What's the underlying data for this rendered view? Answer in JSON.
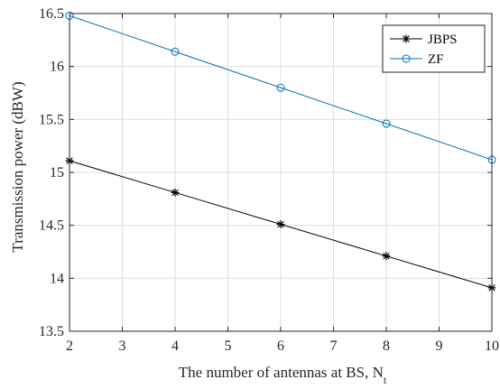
{
  "chart_data": {
    "type": "line",
    "xlabel": "The number of antennas at BS, N",
    "xlabel_subscript": "t",
    "ylabel": "Transmission power (dBW)",
    "xlim": [
      2,
      10
    ],
    "ylim": [
      13.5,
      16.5
    ],
    "xticks": [
      2,
      3,
      4,
      5,
      6,
      7,
      8,
      9,
      10
    ],
    "yticks": [
      13.5,
      14,
      14.5,
      15,
      15.5,
      16,
      16.5
    ],
    "ytick_labels": [
      "13.5",
      "14",
      "14.5",
      "15",
      "15.5",
      "16",
      "16.5"
    ],
    "grid": true,
    "legend_position": "top-right",
    "x": [
      2,
      4,
      6,
      8,
      10
    ],
    "series": [
      {
        "name": "JBPS",
        "values": [
          15.11,
          14.81,
          14.51,
          14.21,
          13.91
        ],
        "color": "#000000",
        "marker": "asterisk"
      },
      {
        "name": "ZF",
        "values": [
          16.48,
          16.14,
          15.8,
          15.46,
          15.12
        ],
        "color": "#0072bd",
        "marker": "circle"
      }
    ]
  }
}
